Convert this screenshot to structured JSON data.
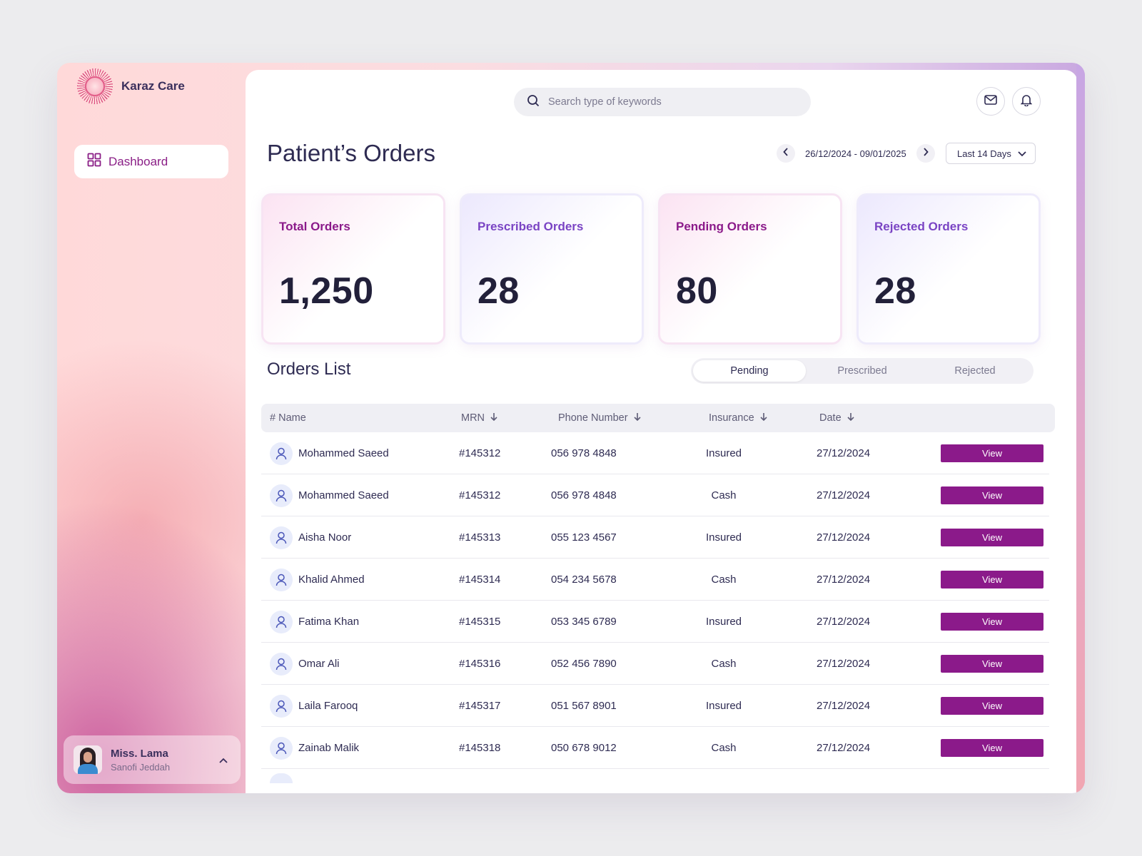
{
  "app": {
    "name": "Karaz Care"
  },
  "sidebar": {
    "items": [
      {
        "label": "Dashboard",
        "icon": "grid-icon",
        "active": true
      }
    ],
    "user": {
      "name": "Miss. Lama",
      "org": "Sanofi Jeddah"
    }
  },
  "header": {
    "search_placeholder": "Search type of keywords"
  },
  "page": {
    "title": "Patient’s Orders",
    "date_range": "26/12/2024 - 09/01/2025",
    "range_option": "Last 14 Days"
  },
  "stats": [
    {
      "label": "Total Orders",
      "value": "1,250"
    },
    {
      "label": "Prescribed Orders",
      "value": "28"
    },
    {
      "label": "Pending Orders",
      "value": "80"
    },
    {
      "label": "Rejected Orders",
      "value": "28"
    }
  ],
  "orders": {
    "title": "Orders List",
    "tabs": [
      "Pending",
      "Prescribed",
      "Rejected"
    ],
    "active_tab": "Pending",
    "columns": [
      "# Name",
      "MRN",
      "Phone Number",
      "Insurance",
      "Date"
    ],
    "view_label": "View",
    "rows": [
      {
        "name": "Mohammed Saeed",
        "mrn": "#145312",
        "phone": "056 978 4848",
        "insurance": "Insured",
        "date": "27/12/2024"
      },
      {
        "name": "Mohammed Saeed",
        "mrn": "#145312",
        "phone": "056 978 4848",
        "insurance": "Cash",
        "date": "27/12/2024"
      },
      {
        "name": "Aisha Noor",
        "mrn": "#145313",
        "phone": "055 123 4567",
        "insurance": "Insured",
        "date": "27/12/2024"
      },
      {
        "name": "Khalid Ahmed",
        "mrn": "#145314",
        "phone": "054 234 5678",
        "insurance": "Cash",
        "date": "27/12/2024"
      },
      {
        "name": "Fatima Khan",
        "mrn": "#145315",
        "phone": "053 345 6789",
        "insurance": "Insured",
        "date": "27/12/2024"
      },
      {
        "name": "Omar Ali",
        "mrn": "#145316",
        "phone": "052 456 7890",
        "insurance": "Cash",
        "date": "27/12/2024"
      },
      {
        "name": "Laila Farooq",
        "mrn": "#145317",
        "phone": "051 567 8901",
        "insurance": "Insured",
        "date": "27/12/2024"
      },
      {
        "name": "Zainab Malik",
        "mrn": "#145318",
        "phone": "050 678 9012",
        "insurance": "Cash",
        "date": "27/12/2024"
      }
    ]
  },
  "colors": {
    "accent": "#8b1a8a",
    "text": "#2e2b52",
    "violet": "#7a44c4"
  }
}
